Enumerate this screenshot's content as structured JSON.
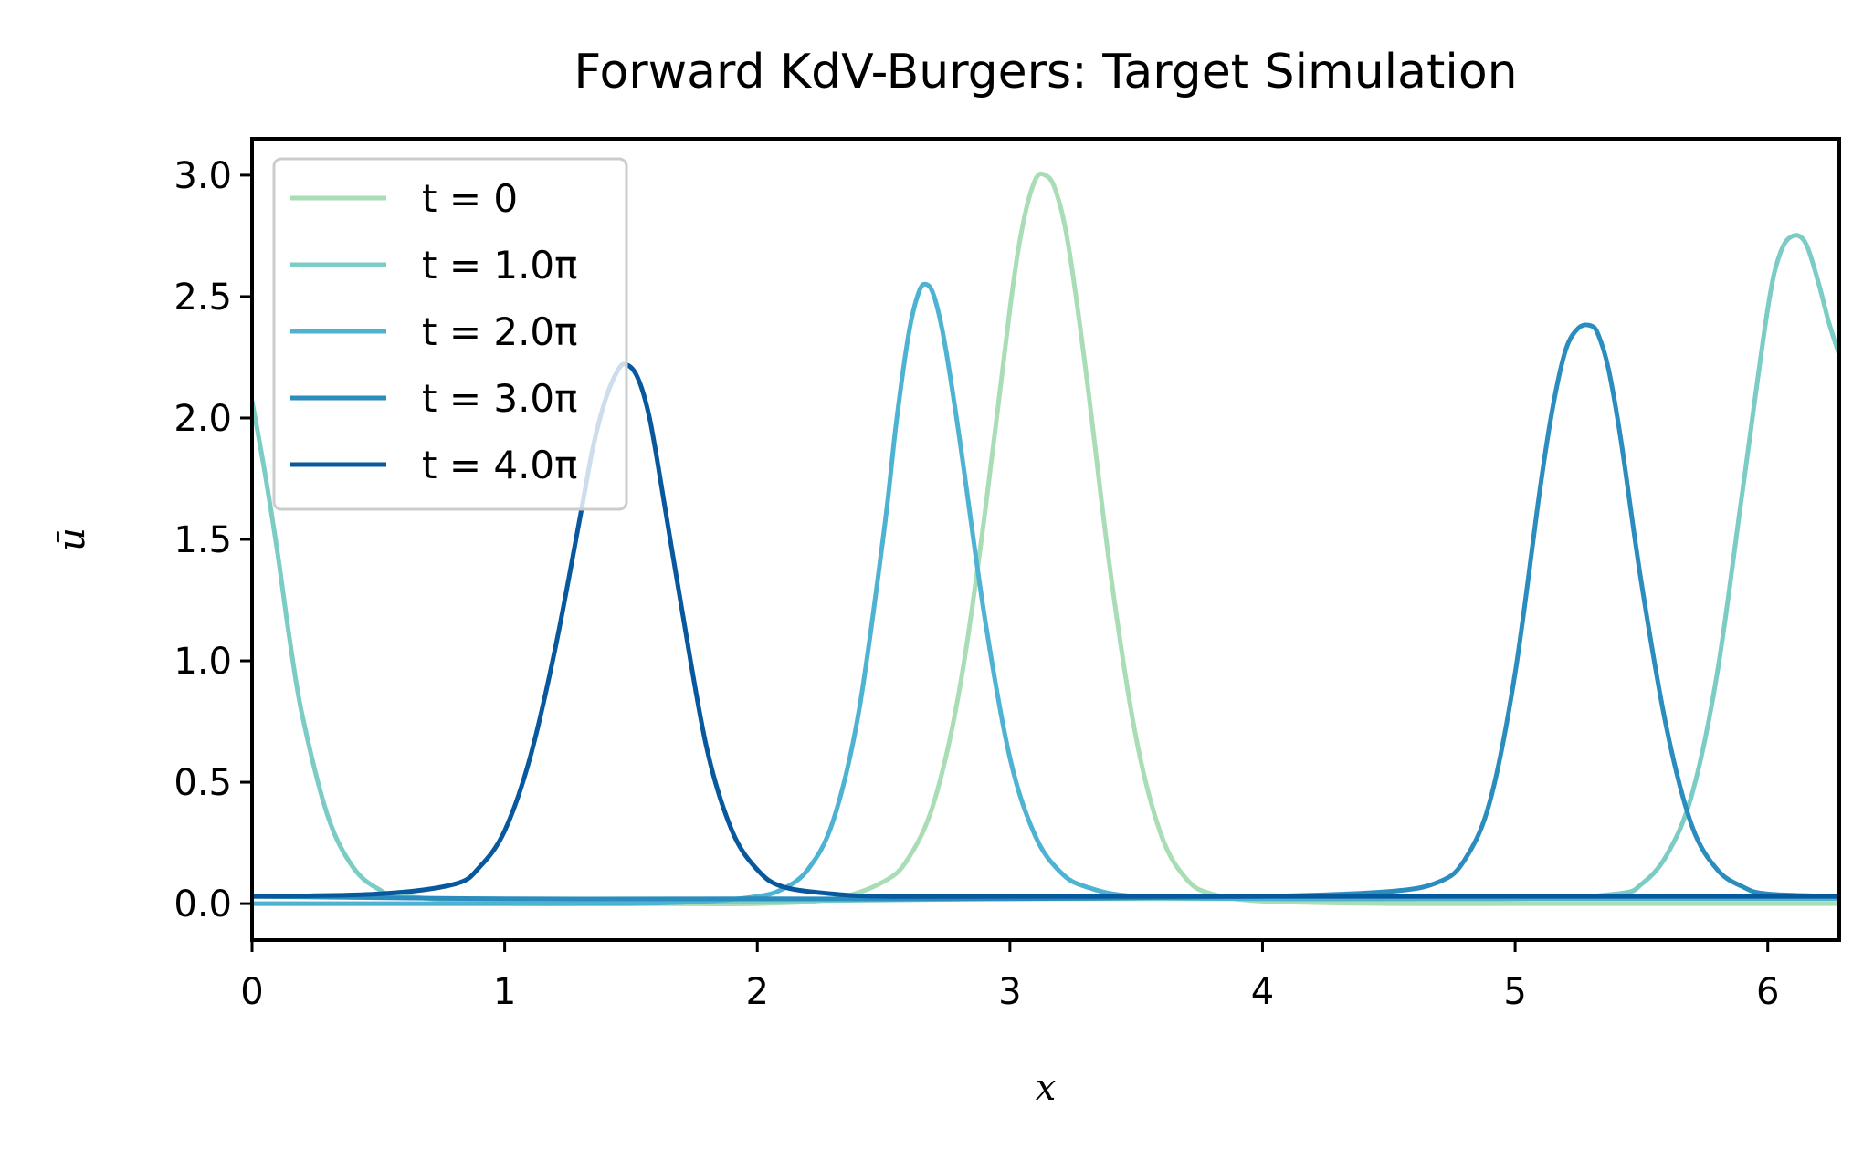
{
  "chart_data": {
    "type": "line",
    "title": "Forward KdV-Burgers: Target Simulation",
    "xlabel": "x",
    "ylabel": "ū",
    "xlim": [
      0,
      6.283
    ],
    "ylim": [
      -0.15,
      3.15
    ],
    "x_ticks": [
      "0",
      "1",
      "2",
      "3",
      "4",
      "5",
      "6"
    ],
    "y_ticks": [
      "0.0",
      "0.5",
      "1.0",
      "1.5",
      "2.0",
      "2.5",
      "3.0"
    ],
    "grid": false,
    "legend_position": "top-left",
    "series": [
      {
        "name": "t = 0",
        "color": "#a8ddb5",
        "x": [
          0.0,
          0.5,
          1.0,
          1.5,
          2.0,
          2.3,
          2.5,
          2.6,
          2.7,
          2.8,
          2.9,
          3.0,
          3.05,
          3.1,
          3.14,
          3.18,
          3.23,
          3.3,
          3.4,
          3.5,
          3.6,
          3.7,
          3.8,
          4.0,
          4.5,
          5.0,
          5.5,
          6.0,
          6.283
        ],
        "y": [
          0.0,
          0.0,
          0.0,
          0.0,
          0.0,
          0.02,
          0.09,
          0.19,
          0.42,
          0.88,
          1.6,
          2.45,
          2.79,
          2.98,
          3.0,
          2.94,
          2.72,
          2.2,
          1.35,
          0.68,
          0.28,
          0.1,
          0.04,
          0.01,
          0.0,
          0.0,
          0.0,
          0.0,
          0.0
        ]
      },
      {
        "name": "t = 1.0π",
        "color": "#7bccc4",
        "x": [
          0.0,
          0.05,
          0.1,
          0.15,
          0.2,
          0.3,
          0.4,
          0.5,
          0.6,
          1.0,
          2.0,
          3.0,
          4.0,
          5.0,
          5.4,
          5.5,
          5.6,
          5.7,
          5.8,
          5.9,
          6.0,
          6.05,
          6.1,
          6.15,
          6.2,
          6.24,
          6.283
        ],
        "y": [
          2.07,
          1.78,
          1.45,
          1.08,
          0.77,
          0.36,
          0.15,
          0.06,
          0.03,
          0.01,
          0.01,
          0.02,
          0.02,
          0.02,
          0.04,
          0.08,
          0.2,
          0.45,
          0.95,
          1.7,
          2.45,
          2.68,
          2.75,
          2.72,
          2.56,
          2.4,
          2.26
        ]
      },
      {
        "name": "t = 2.0π",
        "color": "#4eb3d3",
        "x": [
          0.0,
          0.5,
          1.0,
          1.5,
          1.8,
          2.0,
          2.1,
          2.2,
          2.3,
          2.4,
          2.5,
          2.55,
          2.6,
          2.64,
          2.67,
          2.7,
          2.74,
          2.8,
          2.9,
          3.0,
          3.1,
          3.2,
          3.3,
          3.5,
          4.0,
          4.5,
          5.0,
          5.5,
          6.0,
          6.283
        ],
        "y": [
          0.0,
          0.0,
          0.0,
          0.0,
          0.01,
          0.03,
          0.06,
          0.14,
          0.34,
          0.78,
          1.52,
          1.98,
          2.35,
          2.52,
          2.55,
          2.5,
          2.32,
          1.92,
          1.18,
          0.6,
          0.28,
          0.13,
          0.07,
          0.03,
          0.02,
          0.02,
          0.02,
          0.02,
          0.02,
          0.02
        ]
      },
      {
        "name": "t = 3.0π",
        "color": "#2b8cbe",
        "x": [
          0.0,
          1.0,
          2.0,
          3.0,
          4.0,
          4.5,
          4.7,
          4.8,
          4.9,
          5.0,
          5.1,
          5.15,
          5.2,
          5.25,
          5.3,
          5.33,
          5.37,
          5.42,
          5.5,
          5.6,
          5.7,
          5.8,
          5.9,
          6.0,
          6.283
        ],
        "y": [
          0.03,
          0.02,
          0.02,
          0.02,
          0.03,
          0.05,
          0.09,
          0.18,
          0.42,
          0.95,
          1.72,
          2.05,
          2.28,
          2.37,
          2.38,
          2.34,
          2.2,
          1.9,
          1.32,
          0.72,
          0.32,
          0.14,
          0.07,
          0.04,
          0.03
        ]
      },
      {
        "name": "t = 4.0π",
        "color": "#08589e",
        "x": [
          0.0,
          0.5,
          0.8,
          0.9,
          1.0,
          1.1,
          1.2,
          1.3,
          1.35,
          1.4,
          1.45,
          1.48,
          1.52,
          1.56,
          1.6,
          1.7,
          1.8,
          1.9,
          2.0,
          2.1,
          2.3,
          2.5,
          3.0,
          4.0,
          5.0,
          6.0,
          6.283
        ],
        "y": [
          0.03,
          0.04,
          0.08,
          0.15,
          0.3,
          0.6,
          1.05,
          1.6,
          1.88,
          2.08,
          2.2,
          2.22,
          2.18,
          2.06,
          1.85,
          1.22,
          0.64,
          0.3,
          0.14,
          0.07,
          0.04,
          0.03,
          0.03,
          0.03,
          0.03,
          0.03,
          0.03
        ]
      }
    ]
  }
}
